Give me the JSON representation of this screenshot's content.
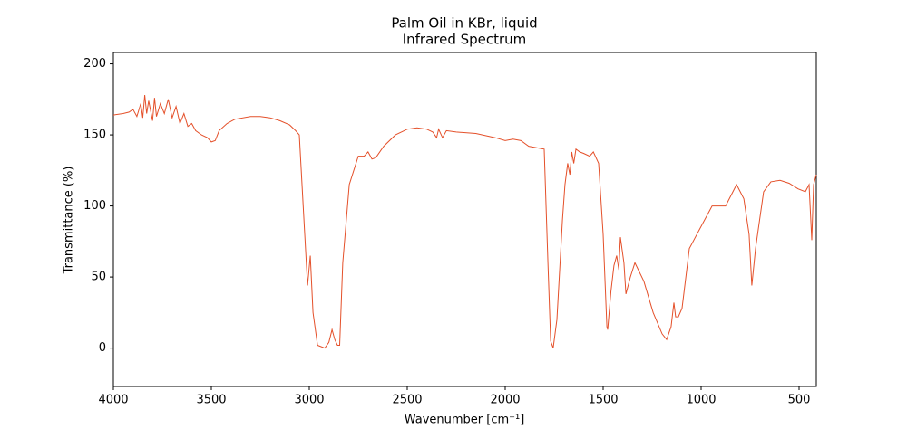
{
  "chart_data": {
    "type": "line",
    "title": "Palm Oil in KBr, liquid",
    "subtitle": "Infrared Spectrum",
    "x_label": "Wavenumber [cm⁻¹]",
    "y_label": "Transmittance (%)",
    "xlim": [
      4000,
      412
    ],
    "ylim": [
      -27,
      208
    ],
    "xticks": [
      4000,
      3500,
      3000,
      2500,
      2000,
      1500,
      1000,
      500
    ],
    "yticks": [
      0,
      50,
      100,
      150,
      200
    ],
    "series": [
      {
        "color": "#e4502a",
        "x": [
          4000,
          3950,
          3920,
          3900,
          3880,
          3860,
          3850,
          3840,
          3830,
          3820,
          3800,
          3790,
          3780,
          3760,
          3740,
          3720,
          3700,
          3680,
          3660,
          3640,
          3620,
          3600,
          3580,
          3550,
          3520,
          3500,
          3480,
          3460,
          3420,
          3380,
          3300,
          3250,
          3200,
          3150,
          3100,
          3070,
          3051,
          3023,
          3009,
          2995,
          2981,
          2958,
          2940,
          2921,
          2900,
          2884,
          2870,
          2856,
          2845,
          2829,
          2796,
          2750,
          2720,
          2700,
          2680,
          2660,
          2620,
          2560,
          2500,
          2450,
          2400,
          2370,
          2350,
          2340,
          2320,
          2300,
          2250,
          2150,
          2050,
          2000,
          1960,
          1920,
          1880,
          1840,
          1801,
          1782,
          1768,
          1755,
          1736,
          1708,
          1695,
          1681,
          1670,
          1660,
          1650,
          1639,
          1620,
          1600,
          1569,
          1550,
          1523,
          1500,
          1481,
          1477,
          1460,
          1445,
          1431,
          1420,
          1412,
          1394,
          1384,
          1361,
          1338,
          1292,
          1245,
          1199,
          1176,
          1153,
          1139,
          1130,
          1116,
          1097,
          1060,
          1014,
          944,
          875,
          819,
          782,
          755,
          741,
          722,
          681,
          644,
          597,
          551,
          505,
          468,
          449,
          435,
          426,
          412
        ],
        "values": [
          164,
          165,
          166,
          168,
          163,
          172,
          162,
          178,
          165,
          174,
          160,
          176,
          163,
          172,
          165,
          175,
          162,
          170,
          158,
          165,
          156,
          158,
          153,
          150,
          148,
          145,
          146,
          153,
          158,
          161,
          163,
          163,
          162,
          160,
          157,
          153,
          150,
          80,
          44,
          65,
          25,
          2,
          1,
          0,
          4,
          13,
          6,
          2,
          2,
          60,
          115,
          135,
          135,
          138,
          133,
          134,
          142,
          150,
          154,
          155,
          154,
          152,
          148,
          154,
          148,
          153,
          152,
          151,
          148,
          146,
          147,
          146,
          142,
          141,
          140,
          60,
          5,
          0,
          20,
          90,
          115,
          130,
          122,
          138,
          130,
          140,
          138,
          137,
          135,
          138,
          130,
          80,
          15,
          13,
          40,
          58,
          65,
          55,
          78,
          60,
          38,
          50,
          60,
          47,
          25,
          10,
          6,
          15,
          32,
          22,
          22,
          28,
          70,
          82,
          100,
          100,
          115,
          105,
          80,
          44,
          70,
          110,
          117,
          118,
          116,
          112,
          110,
          115,
          76,
          115,
          122
        ]
      }
    ]
  }
}
